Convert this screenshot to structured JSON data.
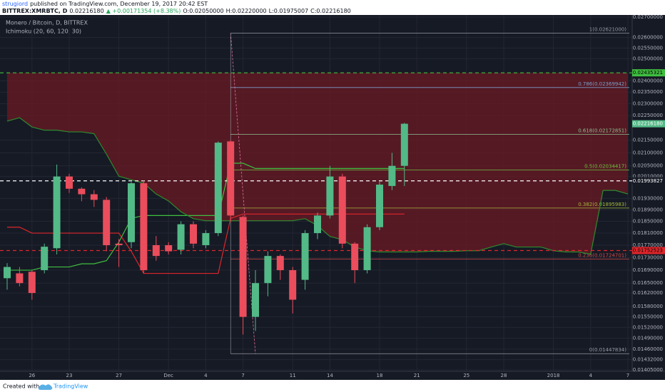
{
  "header": {
    "user": "strugiord",
    "published": "published on TradingView.com, December 19, 2017 20:42 EST",
    "symbol": "BITTREX:XMRBTC, D",
    "last": "0.02216180",
    "change": "▲ +0.00171354 (+8.38%)",
    "open": "O:0.02050000",
    "high": "H:0.02220000",
    "low": "L:0.01975007",
    "close": "C:0.02216180"
  },
  "footer": {
    "created": "Created with",
    "brand": "TradingView"
  },
  "chart_data": {
    "type": "candlestick",
    "title": "Monero / Bitcoin, D, BITTREX",
    "indicator": "Ichimoku (20, 60, 120, 30)",
    "categories": [
      null,
      null,
      "26",
      null,
      null,
      "23",
      null,
      null,
      null,
      "27",
      null,
      null,
      null,
      "Dec",
      null,
      null,
      "4",
      null,
      null,
      "7",
      null,
      null,
      null,
      "11",
      null,
      null,
      "14",
      null,
      null,
      null,
      "18",
      null,
      null,
      "21",
      null,
      null,
      null,
      "25",
      null,
      null,
      "28",
      null,
      null,
      null,
      "2018",
      null,
      null,
      "4",
      null,
      null,
      "7"
    ],
    "open": [
      0.01665,
      0.0168,
      0.01685,
      0.0169,
      0.0176,
      0.0201,
      0.01965,
      0.01945,
      0.01925,
      0.01775,
      0.0178,
      0.01985,
      0.0177,
      0.0177,
      0.01755,
      0.0184,
      0.0177,
      0.0181,
      0.02145,
      0.01865,
      0.0155,
      0.0165,
      0.01735,
      0.0169,
      0.0166,
      0.0181,
      0.0187,
      0.0201,
      0.01775,
      0.0169,
      0.0183,
      0.01975,
      0.0205,
      null,
      null,
      null,
      null,
      null,
      null,
      null,
      null,
      null,
      null,
      null,
      null,
      null,
      null,
      null,
      null,
      null,
      null
    ],
    "high": [
      0.01712,
      0.017,
      0.0169,
      0.01775,
      0.02055,
      0.0202,
      0.0197,
      0.0196,
      0.01935,
      0.0179,
      0.0199,
      0.01995,
      0.018,
      0.0178,
      0.0185,
      0.0185,
      0.0182,
      0.02145,
      0.0215,
      0.0187,
      0.0169,
      0.0175,
      0.0174,
      0.017,
      0.0182,
      0.0188,
      0.0205,
      0.0202,
      0.0178,
      0.0184,
      0.0199,
      0.021,
      0.0222,
      null,
      null,
      null,
      null,
      null,
      null,
      null,
      null,
      null,
      null,
      null,
      null,
      null,
      null,
      null,
      null,
      null,
      null
    ],
    "low": [
      0.0163,
      0.0164,
      0.016,
      0.0168,
      0.0174,
      0.0195,
      0.0192,
      0.019,
      0.0175,
      0.017,
      0.0176,
      0.0168,
      0.0172,
      0.0174,
      0.0174,
      0.0176,
      0.0176,
      0.018,
      0.0185,
      0.015,
      0.0151,
      0.0161,
      0.0166,
      0.0156,
      0.0163,
      0.0179,
      0.0186,
      0.0176,
      0.0165,
      0.0168,
      0.0182,
      0.0196,
      0.01975007,
      null,
      null,
      null,
      null,
      null,
      null,
      null,
      null,
      null,
      null,
      null,
      null,
      null,
      null,
      null,
      null,
      null,
      null
    ],
    "close": [
      0.017,
      0.0165,
      0.0162,
      0.01765,
      0.0201,
      0.01965,
      0.01945,
      0.01925,
      0.0177,
      0.0177,
      0.01985,
      0.0169,
      0.01735,
      0.0175,
      0.0184,
      0.01775,
      0.0181,
      0.0214,
      0.0187,
      0.0155,
      0.0165,
      0.01735,
      0.0169,
      0.016,
      0.0181,
      0.0187,
      0.0201,
      0.01775,
      0.0169,
      0.0183,
      0.0198,
      0.0205,
      0.0221618,
      null,
      null,
      null,
      null,
      null,
      null,
      null,
      null,
      null,
      null,
      null,
      null,
      null,
      null,
      null,
      null,
      null,
      null
    ],
    "up_color": "#53b987",
    "down_color": "#eb4d5c",
    "lines": [
      {
        "color": "#e0262b",
        "values": [
          0.0183,
          0.0183,
          0.0181,
          0.0181,
          0.0181,
          0.0181,
          0.0181,
          0.0181,
          0.0181,
          0.0181,
          0.0175,
          0.0168,
          0.0168,
          0.0168,
          0.0168,
          0.0168,
          0.0168,
          0.0168,
          0.0186,
          0.01875,
          0.01875,
          0.01875,
          0.01875,
          0.01875,
          0.01875,
          0.01875,
          0.01875,
          0.01875,
          0.01875,
          0.01875,
          0.01875,
          0.01875,
          0.01875,
          null,
          null,
          null,
          null,
          null,
          null,
          null,
          null,
          null,
          null,
          null,
          null,
          null,
          null,
          null,
          null,
          null,
          null
        ]
      },
      {
        "color": "#3fbf3f",
        "values": [
          0.0169,
          0.0169,
          0.0169,
          0.017,
          0.017,
          0.017,
          0.0171,
          0.0171,
          0.0172,
          0.0178,
          0.0186,
          0.0187,
          0.0187,
          0.0187,
          0.0187,
          0.0187,
          0.0187,
          0.0187,
          0.0206,
          0.0206,
          0.0204,
          0.0204,
          0.0204,
          0.0204,
          0.0204,
          0.0204,
          0.0204,
          0.0204,
          0.0204,
          0.0204,
          0.0204,
          0.0204,
          0.0204,
          null,
          null,
          null,
          null,
          null,
          null,
          null,
          null,
          null,
          null,
          null,
          null,
          null,
          null,
          null,
          null,
          null,
          null
        ]
      },
      {
        "color": "#2e8b2e",
        "cloud": true,
        "values": [
          0.02227,
          0.02241,
          0.02203,
          0.0219,
          0.0219,
          0.02183,
          0.02183,
          0.02176,
          0.02095,
          0.02011,
          0.01998,
          0.01985,
          0.01946,
          0.01921,
          0.01883,
          0.01859,
          0.01852,
          0.01852,
          0.01852,
          0.01852,
          0.01852,
          0.01852,
          0.01852,
          0.01852,
          0.01859,
          0.01835,
          0.01799,
          0.01788,
          0.01764,
          0.01752,
          0.01748,
          0.01748,
          0.01748,
          0.01748,
          0.0175,
          0.0175,
          0.0175,
          0.01752,
          0.01752,
          0.01764,
          0.01775,
          0.01764,
          0.01764,
          0.01764,
          0.01752,
          0.01748,
          0.01748,
          0.01741,
          0.01959,
          0.01959,
          0.01946
        ]
      }
    ],
    "log": true,
    "grid": true,
    "ylim": [
      0.01405,
      0.027
    ],
    "yticks": [
      {
        "value": 0.027,
        "label": "0.02700000"
      },
      {
        "value": 0.026,
        "label": "0.02600000"
      },
      {
        "value": 0.0255,
        "label": "0.02550000"
      },
      {
        "value": 0.025,
        "label": "0.02500000"
      },
      {
        "value": 0.024,
        "label": "0.02400000"
      },
      {
        "value": 0.0235,
        "label": "0.02350000"
      },
      {
        "value": 0.023,
        "label": "0.02300000"
      },
      {
        "value": 0.0225,
        "label": "0.02250000"
      },
      {
        "value": 0.0215,
        "label": "0.02150000"
      },
      {
        "value": 0.021,
        "label": "0.02100000"
      },
      {
        "value": 0.0205,
        "label": "0.02050000"
      },
      {
        "value": 0.0201,
        "label": "0.02010000"
      },
      {
        "value": 0.0193,
        "label": "0.01930000"
      },
      {
        "value": 0.0189,
        "label": "0.01890000"
      },
      {
        "value": 0.0185,
        "label": "0.01850000"
      },
      {
        "value": 0.0181,
        "label": "0.01810000"
      },
      {
        "value": 0.0177,
        "label": "0.01770000"
      },
      {
        "value": 0.0173,
        "label": "0.01730000"
      },
      {
        "value": 0.0169,
        "label": "0.01690000"
      },
      {
        "value": 0.0165,
        "label": "0.01650000"
      },
      {
        "value": 0.0162,
        "label": "0.01620000"
      },
      {
        "value": 0.0158,
        "label": "0.01580000"
      },
      {
        "value": 0.0155,
        "label": "0.01550000"
      },
      {
        "value": 0.0152,
        "label": "0.01520000"
      },
      {
        "value": 0.0149,
        "label": "0.01490000"
      },
      {
        "value": 0.0146,
        "label": "0.01460000"
      },
      {
        "value": 0.01432,
        "label": "0.01432000"
      },
      {
        "value": 0.01405,
        "label": "0.01405000"
      }
    ],
    "levels": [
      {
        "value": 0.02435321,
        "label": "0.02435321",
        "color": "#3fbf3f"
      },
      {
        "value": 0.01993827,
        "label": "0.01993827",
        "color": "#ffffff"
      },
      {
        "value": 0.01752523,
        "label": "0.01752523",
        "color": "#e0262b"
      }
    ],
    "last_price": {
      "value": 0.0221618,
      "label": "0.02216180",
      "color": "#53b987"
    },
    "fib": [
      {
        "value": 0.02621,
        "label": "1(0.02621000)",
        "color": "#9598a1"
      },
      {
        "value": 0.02369942,
        "label": "0.786(0.02369942)",
        "color": "#7e9fc9"
      },
      {
        "value": 0.02172851,
        "label": "0.618(0.02172851)",
        "color": "#8fbf8f"
      },
      {
        "value": 0.02034417,
        "label": "0.5(0.02034417)",
        "color": "#6fc03f"
      },
      {
        "value": 0.01895983,
        "label": "0.382(0.01895983)",
        "color": "#a8b83a"
      },
      {
        "value": 0.01724701,
        "label": "0.236(0.01724701)",
        "color": "#d04a4a"
      },
      {
        "value": 0.01447834,
        "label": "0(0.01447834)",
        "color": "#9598a1"
      }
    ]
  }
}
